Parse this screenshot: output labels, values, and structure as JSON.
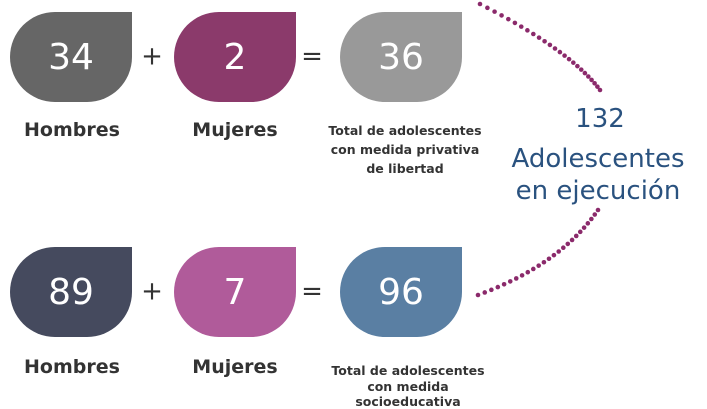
{
  "plus": "+",
  "equals": "=",
  "rows": [
    {
      "men": {
        "value": "34",
        "label": "Hombres"
      },
      "women": {
        "value": "2",
        "label": "Mujeres"
      },
      "total": {
        "value": "36",
        "label": [
          "Total de adolescentes",
          "con medida privativa",
          "de libertad"
        ]
      }
    },
    {
      "men": {
        "value": "89",
        "label": "Hombres"
      },
      "women": {
        "value": "7",
        "label": "Mujeres"
      },
      "total": {
        "value": "96",
        "label": [
          "Total de adolescentes",
          "con medida",
          "socioeducativa"
        ]
      }
    }
  ],
  "summary": {
    "value": "132",
    "lines": [
      "Adolescentes",
      "en ejecución"
    ]
  }
}
